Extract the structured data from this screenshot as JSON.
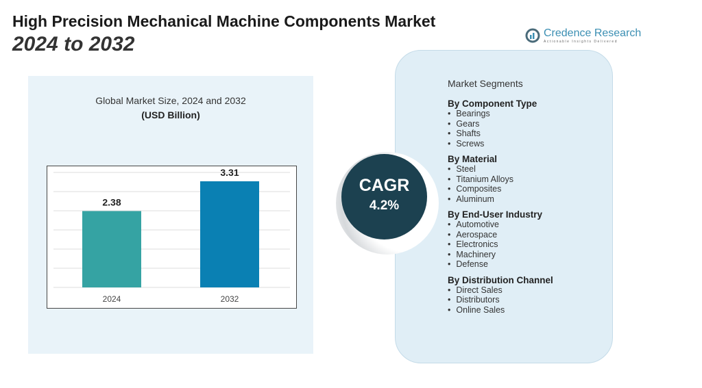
{
  "title": "High Precision Mechanical Machine Components Market",
  "subtitle": "2024 to 2032",
  "logo": {
    "name": "Credence Research",
    "tagline": "Actionable Insights Delivered"
  },
  "chart_data": {
    "type": "bar",
    "title": "Global Market Size, 2024 and 2032",
    "unit": "(USD Billion)",
    "categories": [
      "2024",
      "2032"
    ],
    "values": [
      2.38,
      3.31
    ],
    "value_labels": [
      "2.38",
      "3.31"
    ],
    "colors": [
      "#35a3a3",
      "#0a80b3"
    ],
    "ylim": [
      0,
      3.8
    ],
    "grid": true
  },
  "cagr": {
    "label": "CAGR",
    "value": "4.2%"
  },
  "segments": {
    "heading": "Market Segments",
    "groups": [
      {
        "title": "By Component Type",
        "items": [
          "Bearings",
          "Gears",
          "Shafts",
          "Screws"
        ]
      },
      {
        "title": "By Material",
        "items": [
          "Steel",
          "Titanium Alloys",
          "Composites",
          "Aluminum"
        ]
      },
      {
        "title": "By End-User Industry",
        "items": [
          "Automotive",
          "Aerospace",
          "Electronics",
          "Machinery",
          "Defense"
        ]
      },
      {
        "title": "By Distribution Channel",
        "items": [
          "Direct Sales",
          "Distributors",
          "Online Sales"
        ]
      }
    ]
  }
}
